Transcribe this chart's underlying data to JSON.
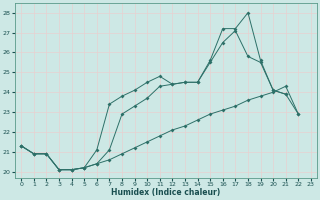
{
  "xlabel": "Humidex (Indice chaleur)",
  "background_color": "#cde8e5",
  "grid_color": "#e8d0d0",
  "line_color": "#2d7068",
  "xlim": [
    -0.5,
    23.5
  ],
  "ylim": [
    19.7,
    28.5
  ],
  "xticks": [
    0,
    1,
    2,
    3,
    4,
    5,
    6,
    7,
    8,
    9,
    10,
    11,
    12,
    13,
    14,
    15,
    16,
    17,
    18,
    19,
    20,
    21,
    22,
    23
  ],
  "yticks": [
    20,
    21,
    22,
    23,
    24,
    25,
    26,
    27,
    28
  ],
  "series1_x": [
    0,
    1,
    2,
    3,
    4,
    5,
    6,
    7,
    8,
    9,
    10,
    11,
    12,
    13,
    14,
    15,
    16,
    17,
    18,
    19,
    20,
    21
  ],
  "series1_y": [
    21.3,
    20.9,
    20.9,
    20.1,
    20.1,
    20.2,
    20.4,
    21.1,
    22.9,
    23.3,
    23.7,
    24.3,
    24.4,
    24.5,
    24.5,
    25.6,
    27.2,
    27.2,
    28.0,
    25.6,
    24.1,
    23.9
  ],
  "series2_x": [
    0,
    1,
    2,
    3,
    4,
    5,
    6,
    7,
    8,
    9,
    10,
    11,
    12,
    13,
    14,
    15,
    16,
    17,
    18,
    19,
    20,
    21,
    22,
    23
  ],
  "series2_y": [
    21.3,
    20.9,
    20.9,
    20.1,
    20.1,
    20.2,
    21.1,
    23.4,
    23.8,
    24.1,
    24.5,
    24.8,
    24.4,
    24.5,
    24.5,
    25.5,
    26.5,
    27.1,
    25.8,
    25.5,
    24.1,
    23.9,
    22.9,
    null
  ],
  "series3_x": [
    0,
    1,
    2,
    3,
    4,
    5,
    6,
    7,
    8,
    9,
    10,
    11,
    12,
    13,
    14,
    15,
    16,
    17,
    18,
    19,
    20,
    21,
    22,
    23
  ],
  "series3_y": [
    21.3,
    20.9,
    20.9,
    20.1,
    20.1,
    20.2,
    20.4,
    20.6,
    20.9,
    21.2,
    21.5,
    21.8,
    22.1,
    22.3,
    22.6,
    22.9,
    23.1,
    23.3,
    23.6,
    23.8,
    24.0,
    24.3,
    22.9,
    null
  ]
}
